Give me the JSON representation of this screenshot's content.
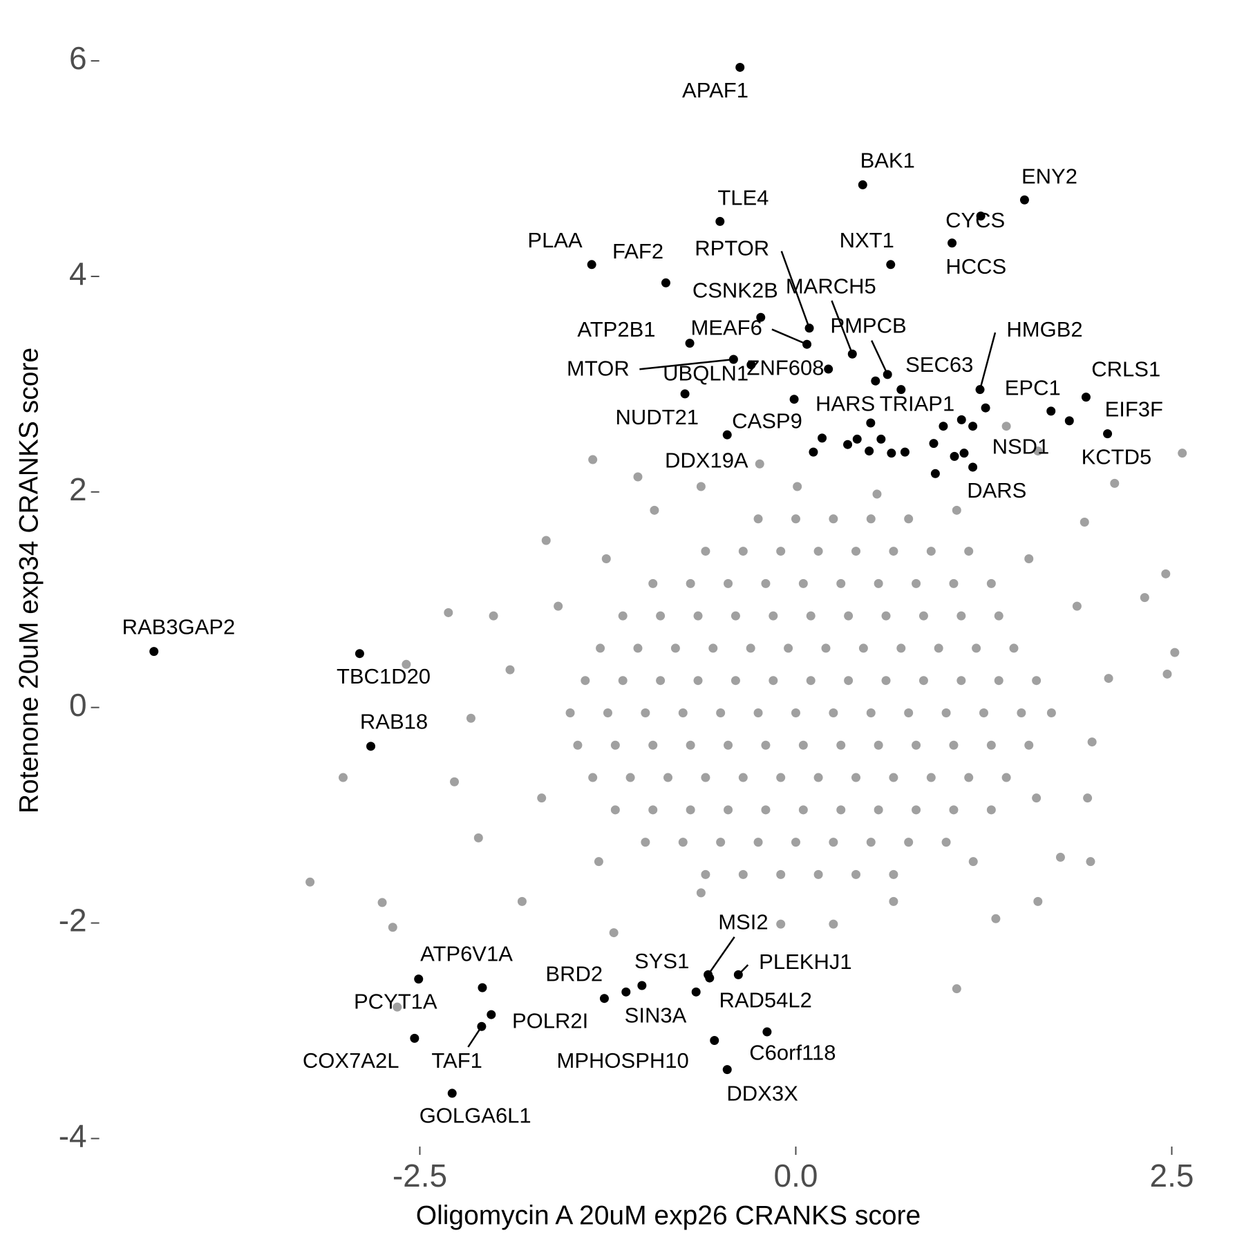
{
  "chart_data": {
    "type": "scatter",
    "x_label": "Oligomycin A 20uM exp26 CRANKS score",
    "y_label": "Rotenone 20uM exp34 CRANKS score",
    "xlim": [
      -4.65,
      2.7
    ],
    "ylim": [
      -4.1,
      6.15
    ],
    "xticks": [
      -2.5,
      {
        "value": 0,
        "label": "0.0"
      },
      2.5
    ],
    "yticks": [
      -4,
      -2,
      0,
      2,
      4,
      6
    ],
    "series": [
      {
        "color": "#a0a0a0",
        "x": [
          -3.23,
          -3.01,
          -2.75,
          -2.68,
          -2.65,
          -2.59,
          -2.31,
          -2.01,
          -1.66,
          -1.35,
          -1.05,
          -0.24,
          1.07,
          1.33,
          1.96,
          2.57,
          2.52,
          2.47,
          2.46,
          2.32,
          2.12,
          1.94,
          1.76,
          1.61,
          1.92,
          1.61,
          1.4,
          0.25,
          -0.1,
          -1.21,
          -1.82,
          -2.11,
          -2.27,
          -2.16,
          -1.9,
          -1.58,
          -1.26,
          -0.94,
          -0.63,
          0.01,
          0.54,
          1.07,
          1.55,
          1.87,
          2.08,
          1.97,
          1.6,
          1.18,
          0.65,
          -0.63,
          -1.31,
          -1.69,
          -0.6,
          -0.35,
          -0.1,
          0.15,
          0.4,
          0.65,
          -1.0,
          -0.75,
          -0.5,
          -0.25,
          0,
          0.25,
          0.5,
          0.75,
          1.0,
          -1.2,
          -0.95,
          -0.7,
          -0.45,
          -0.2,
          0.05,
          0.3,
          0.55,
          0.8,
          1.05,
          1.3,
          -1.35,
          -1.1,
          -0.85,
          -0.6,
          -0.35,
          -0.1,
          0.15,
          0.4,
          0.65,
          0.9,
          1.15,
          1.4,
          -1.45,
          -1.2,
          -0.95,
          -0.7,
          -0.45,
          -0.2,
          0.05,
          0.3,
          0.55,
          0.8,
          1.05,
          1.3,
          1.55,
          -1.5,
          -1.25,
          -1.0,
          -0.75,
          -0.5,
          -0.25,
          0,
          0.25,
          0.5,
          0.75,
          1.0,
          1.25,
          1.5,
          1.7,
          -1.4,
          -1.15,
          -0.9,
          -0.65,
          -0.4,
          -0.15,
          0.1,
          0.35,
          0.6,
          0.85,
          1.1,
          1.35,
          1.6,
          -1.3,
          -1.05,
          -0.8,
          -0.55,
          -0.3,
          -0.05,
          0.2,
          0.45,
          0.7,
          0.95,
          1.2,
          1.45,
          -1.15,
          -0.9,
          -0.65,
          -0.4,
          -0.15,
          0.1,
          0.35,
          0.6,
          0.85,
          1.1,
          1.35,
          -0.95,
          -0.7,
          -0.45,
          -0.2,
          0.05,
          0.3,
          0.55,
          0.8,
          1.05,
          1.3,
          -0.6,
          -0.35,
          -0.1,
          0.15,
          0.4,
          0.65,
          0.9,
          1.15,
          -0.25,
          0,
          0.25,
          0.5,
          0.75
        ],
        "y": [
          -1.62,
          -0.65,
          -1.81,
          -2.04,
          -2.78,
          0.4,
          0.88,
          0.85,
          1.55,
          2.3,
          2.14,
          2.26,
          -2.61,
          -1.96,
          -1.43,
          2.36,
          0.51,
          0.31,
          1.24,
          1.02,
          2.08,
          -0.84,
          -1.39,
          -1.8,
          1.72,
          2.38,
          2.61,
          -2.01,
          -2.01,
          -2.09,
          -1.8,
          -1.21,
          -0.69,
          -0.1,
          0.35,
          0.94,
          1.38,
          1.83,
          2.05,
          2.05,
          1.98,
          1.83,
          1.38,
          0.94,
          0.27,
          -0.32,
          -0.84,
          -1.43,
          -1.8,
          -1.72,
          -1.43,
          -0.84,
          -1.55,
          -1.55,
          -1.55,
          -1.55,
          -1.55,
          -1.55,
          -1.25,
          -1.25,
          -1.25,
          -1.25,
          -1.25,
          -1.25,
          -1.25,
          -1.25,
          -1.25,
          -0.95,
          -0.95,
          -0.95,
          -0.95,
          -0.95,
          -0.95,
          -0.95,
          -0.95,
          -0.95,
          -0.95,
          -0.95,
          -0.65,
          -0.65,
          -0.65,
          -0.65,
          -0.65,
          -0.65,
          -0.65,
          -0.65,
          -0.65,
          -0.65,
          -0.65,
          -0.65,
          -0.35,
          -0.35,
          -0.35,
          -0.35,
          -0.35,
          -0.35,
          -0.35,
          -0.35,
          -0.35,
          -0.35,
          -0.35,
          -0.35,
          -0.35,
          -0.05,
          -0.05,
          -0.05,
          -0.05,
          -0.05,
          -0.05,
          -0.05,
          -0.05,
          -0.05,
          -0.05,
          -0.05,
          -0.05,
          -0.05,
          -0.05,
          0.25,
          0.25,
          0.25,
          0.25,
          0.25,
          0.25,
          0.25,
          0.25,
          0.25,
          0.25,
          0.25,
          0.25,
          0.25,
          0.55,
          0.55,
          0.55,
          0.55,
          0.55,
          0.55,
          0.55,
          0.55,
          0.55,
          0.55,
          0.55,
          0.55,
          0.85,
          0.85,
          0.85,
          0.85,
          0.85,
          0.85,
          0.85,
          0.85,
          0.85,
          0.85,
          0.85,
          1.15,
          1.15,
          1.15,
          1.15,
          1.15,
          1.15,
          1.15,
          1.15,
          1.15,
          1.15,
          1.45,
          1.45,
          1.45,
          1.45,
          1.45,
          1.45,
          1.45,
          1.45,
          1.75,
          1.75,
          1.75,
          1.75,
          1.75
        ]
      },
      {
        "color": "#000000",
        "x": [
          -0.371,
          0.445,
          1.521,
          1.23,
          -0.504,
          1.039,
          -1.357,
          0.631,
          -0.864,
          -0.233,
          0.09,
          0.074,
          -0.705,
          -0.414,
          0.376,
          -0.297,
          0.217,
          0.61,
          0.53,
          -0.737,
          1.225,
          1.93,
          -0.011,
          1.102,
          1.697,
          1.819,
          2.073,
          -0.456,
          1.177,
          0.175,
          1.177,
          -4.268,
          -2.9,
          -2.826,
          -2.508,
          -2.084,
          -2.025,
          -2.089,
          -2.535,
          -2.285,
          -1.273,
          -1.023,
          -1.129,
          -0.583,
          -0.663,
          -0.382,
          -0.541,
          -0.191,
          -0.456,
          1.262,
          0.981,
          0.345,
          0.408,
          0.567,
          0.917,
          0.726,
          1.119,
          1.055,
          0.928,
          0.636,
          0.488,
          0.117,
          0.7,
          0.498,
          -0.573
        ],
        "y": [
          5.94,
          4.85,
          4.71,
          4.56,
          4.51,
          4.31,
          4.11,
          4.11,
          3.94,
          3.62,
          3.52,
          3.37,
          3.38,
          3.23,
          3.28,
          3.18,
          3.14,
          3.09,
          3.03,
          2.91,
          2.95,
          2.88,
          2.86,
          2.67,
          2.75,
          2.66,
          2.54,
          2.53,
          2.61,
          2.5,
          2.23,
          0.52,
          0.5,
          -0.36,
          -2.52,
          -2.6,
          -2.85,
          -2.96,
          -3.07,
          -3.58,
          -2.7,
          -2.58,
          -2.64,
          -2.48,
          -2.64,
          -2.48,
          -3.09,
          -3.01,
          -3.36,
          2.78,
          2.61,
          2.44,
          2.49,
          2.49,
          2.45,
          2.37,
          2.36,
          2.33,
          2.17,
          2.36,
          2.38,
          2.37,
          2.95,
          2.64,
          -2.51
        ],
        "labels": [
          "APAF1",
          "BAK1",
          "ENY2",
          "CYCS",
          "TLE4",
          "HCCS",
          "PLAA",
          "NXT1",
          "FAF2",
          "CSNK2B",
          "RPTOR",
          "MEAF6",
          "ATP2B1",
          "MTOR",
          "MARCH5",
          "UBQLN1",
          "ZNF608",
          "PMPCB",
          "SEC63",
          "NUDT21",
          "HMGB2",
          "CRLS1",
          "HARS",
          "TRIAP1",
          "EPC1",
          "EIF3F",
          "KCTD5",
          "CASP9",
          "NSD1",
          "DDX19A",
          "DARS",
          "RAB3GAP2",
          "TBC1D20",
          "RAB18",
          "PCYT1A",
          "ATP6V1A",
          "POLR2I",
          "TAF1",
          "COX7A2L",
          "GOLGA6L1",
          "BRD2",
          "SYS1",
          "SIN3A",
          "MSI2",
          "RAD54L2",
          "PLEKHJ1",
          "MPHOSPH10",
          "C6orf118",
          "DDX3X",
          null,
          null,
          null,
          null,
          null,
          null,
          null,
          null,
          null,
          null,
          null,
          null,
          null,
          null,
          null,
          null
        ]
      }
    ]
  }
}
